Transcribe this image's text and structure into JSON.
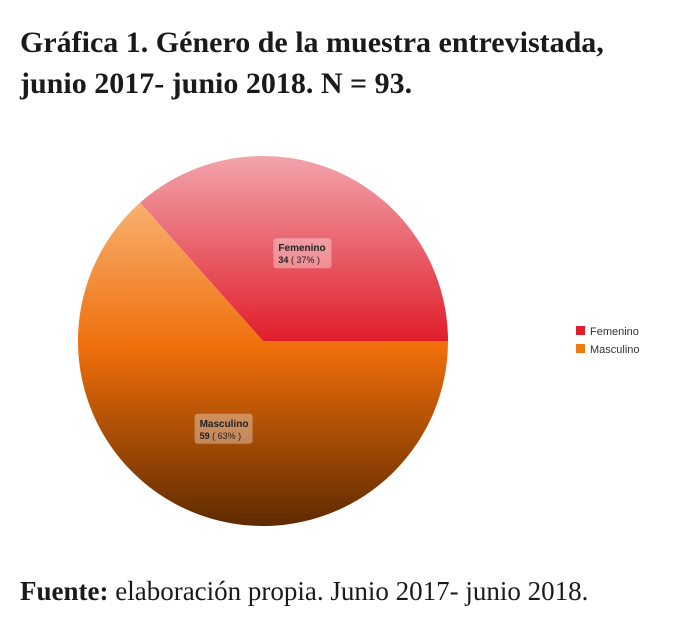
{
  "title": {
    "bold": "Gráfica 1.",
    "text": "Género de la muestra entrevistada, junio 2017- junio 2018. N = 93."
  },
  "source": {
    "bold": "Fuente:",
    "text": "elaboración propia. Junio 2017- junio 2018."
  },
  "chart_data": {
    "type": "pie",
    "slices": [
      {
        "name": "Femenino",
        "value": 34,
        "percent": 37,
        "label_value": "34",
        "label_pct": "( 37% )",
        "color_light": "#f0a0a8",
        "color_dark": "#e01e2a"
      },
      {
        "name": "Masculino",
        "value": 59,
        "percent": 63,
        "label_value": "59",
        "label_pct": "( 63% )",
        "color_light": "#f7a050",
        "color_dark": "#6a3000"
      }
    ],
    "legend": {
      "position": "right",
      "entries": [
        "Femenino",
        "Masculino"
      ]
    }
  }
}
